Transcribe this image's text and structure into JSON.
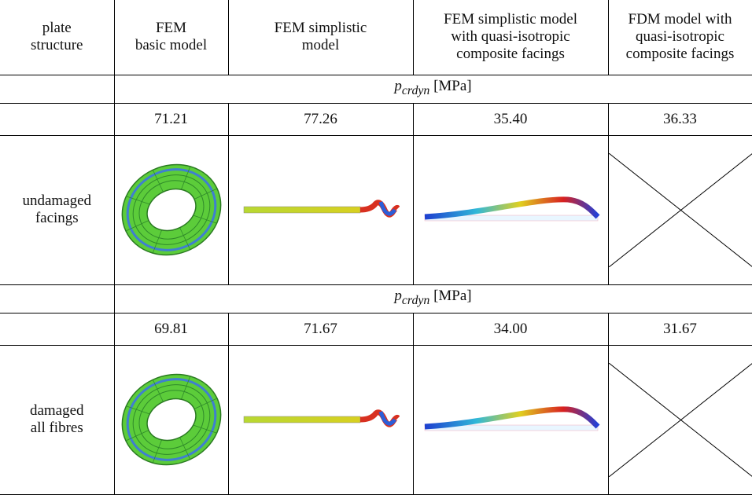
{
  "table": {
    "header": [
      "plate\nstructure",
      "FEM\nbasic model",
      "FEM simplistic\nmodel",
      "FEM simplistic model\nwith quasi-isotropic\ncomposite facings",
      "FDM model with\nquasi-isotropic\ncomposite facings"
    ],
    "sections": [
      {
        "quantity": {
          "symbol": "p",
          "subscript": "crdyn",
          "unit": "[MPa]"
        },
        "values": [
          "71.21",
          "77.26",
          "35.40",
          "36.33"
        ],
        "row_label": "undamaged\nfacings"
      },
      {
        "quantity": {
          "symbol": "p",
          "subscript": "crdyn",
          "unit": "[MPa]"
        },
        "values": [
          "69.81",
          "71.67",
          "34.00",
          "31.67"
        ],
        "row_label": "damaged\nall fibres"
      }
    ]
  }
}
